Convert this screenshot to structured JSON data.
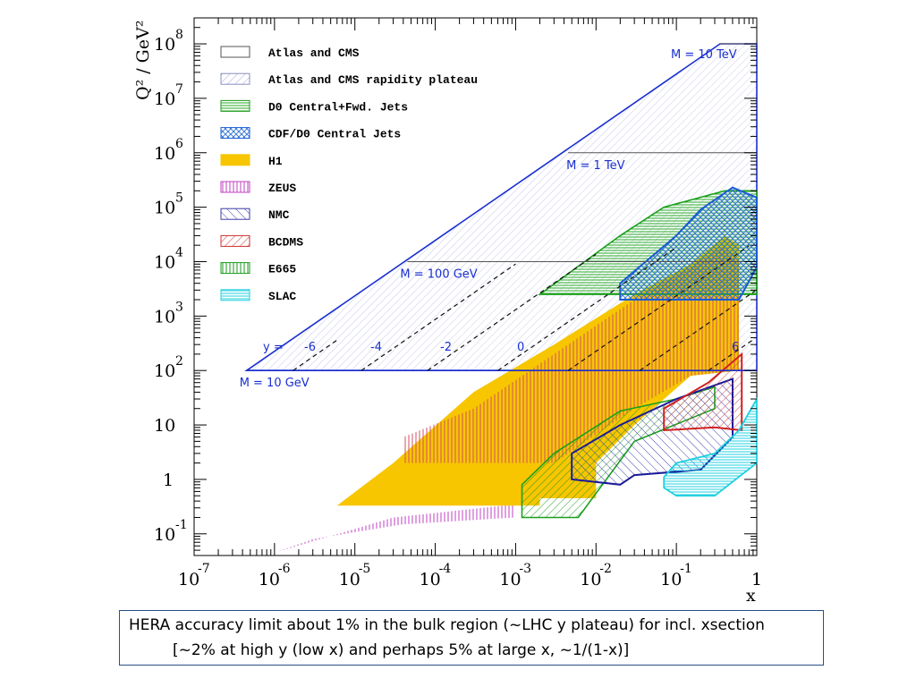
{
  "chart_data": {
    "type": "region-map",
    "axes": {
      "xlabel": "x",
      "ylabel": "Q² / GeV²",
      "xscale": "log",
      "yscale": "log",
      "xlim": [
        1e-07,
        1
      ],
      "ylim": [
        0.04,
        300000000.0
      ],
      "xticks": [
        {
          "base": "10",
          "exp": "-7",
          "value": 1e-07
        },
        {
          "base": "10",
          "exp": "-6",
          "value": 1e-06
        },
        {
          "base": "10",
          "exp": "-5",
          "value": 1e-05
        },
        {
          "base": "10",
          "exp": "-4",
          "value": 0.0001
        },
        {
          "base": "10",
          "exp": "-3",
          "value": 0.001
        },
        {
          "base": "10",
          "exp": "-2",
          "value": 0.01
        },
        {
          "base": "10",
          "exp": "-1",
          "value": 0.1
        },
        {
          "base": "1",
          "exp": "",
          "value": 1
        }
      ],
      "yticks": [
        {
          "base": "10",
          "exp": "8",
          "value": 100000000.0
        },
        {
          "base": "10",
          "exp": "7",
          "value": 10000000.0
        },
        {
          "base": "10",
          "exp": "6",
          "value": 1000000.0
        },
        {
          "base": "10",
          "exp": "5",
          "value": 100000.0
        },
        {
          "base": "10",
          "exp": "4",
          "value": 10000.0
        },
        {
          "base": "10",
          "exp": "3",
          "value": 1000.0
        },
        {
          "base": "10",
          "exp": "2",
          "value": 100.0
        },
        {
          "base": "10",
          "exp": "",
          "value": 10
        },
        {
          "base": "1",
          "exp": "",
          "value": 1
        },
        {
          "base": "10",
          "exp": "-1",
          "value": 0.1
        }
      ]
    },
    "legend": {
      "placement": "top-left",
      "entries": [
        {
          "label": "Atlas and CMS",
          "color": "#555555",
          "pattern": "none"
        },
        {
          "label": "Atlas and CMS rapidity plateau",
          "color": "#8a8fbf",
          "pattern": "diag-right"
        },
        {
          "label": "D0 Central+Fwd. Jets",
          "color": "#1a9a1a",
          "pattern": "horizontal"
        },
        {
          "label": "CDF/D0 Central Jets",
          "color": "#1a5bd6",
          "pattern": "cross"
        },
        {
          "label": "H1",
          "color": "#f7c600",
          "pattern": "solid"
        },
        {
          "label": "ZEUS",
          "color": "#c040c0",
          "pattern": "vertical"
        },
        {
          "label": "NMC",
          "color": "#3a3aa8",
          "pattern": "diag-left"
        },
        {
          "label": "BCDMS",
          "color": "#d03030",
          "pattern": "diag-right"
        },
        {
          "label": "E665",
          "color": "#1a9a1a",
          "pattern": "vertical"
        },
        {
          "label": "SLAC",
          "color": "#20d0e0",
          "pattern": "horizontal"
        }
      ]
    },
    "regions": [
      {
        "name": "Atlas and CMS",
        "color": "#1a2fd0",
        "points": [
          [
            4.5e-07,
            100
          ],
          [
            0.35,
            100000000.0
          ],
          [
            1,
            100000000.0
          ],
          [
            1,
            100
          ]
        ]
      },
      {
        "name": "ZEUS",
        "color": "#c040c0",
        "points": [
          [
            1e-06,
            0.045
          ],
          [
            3e-05,
            0.2
          ],
          [
            0.001,
            0.35
          ],
          [
            0.001,
            0.2
          ],
          [
            4e-05,
            0.15
          ],
          [
            3e-06,
            0.08
          ]
        ]
      },
      {
        "name": "H1",
        "color": "#f7c600",
        "points": [
          [
            6e-06,
            0.33
          ],
          [
            3e-05,
            2
          ],
          [
            0.0003,
            40
          ],
          [
            0.003,
            300
          ],
          [
            0.03,
            2500
          ],
          [
            0.15,
            9000
          ],
          [
            0.4,
            30000
          ],
          [
            0.6,
            20000
          ],
          [
            0.6,
            100
          ],
          [
            0.15,
            80
          ],
          [
            0.03,
            10
          ],
          [
            0.01,
            2
          ],
          [
            0.01,
            0.45
          ],
          [
            0.002,
            0.45
          ],
          [
            0.002,
            0.33
          ]
        ]
      },
      {
        "name": "H1 vertical hatch",
        "color": "#d04a6a",
        "points": [
          [
            4e-05,
            6
          ],
          [
            0.0003,
            20
          ],
          [
            0.003,
            200
          ],
          [
            0.03,
            2000
          ],
          [
            0.15,
            8000
          ],
          [
            0.4,
            20000
          ],
          [
            0.6,
            10000
          ],
          [
            0.6,
            100
          ],
          [
            0.15,
            80
          ],
          [
            0.03,
            20
          ],
          [
            0.003,
            2
          ],
          [
            4e-05,
            2
          ]
        ]
      },
      {
        "name": "D0 Central+Fwd. Jets",
        "color": "#1aa01a",
        "points": [
          [
            0.002,
            2500
          ],
          [
            0.02,
            30000
          ],
          [
            0.07,
            100000
          ],
          [
            0.4,
            200000
          ],
          [
            1,
            200000
          ],
          [
            1,
            2500
          ]
        ]
      },
      {
        "name": "CDF/D0 Central Jets",
        "color": "#1a5bd6",
        "points": [
          [
            0.02,
            2000
          ],
          [
            0.02,
            4000
          ],
          [
            0.1,
            30000
          ],
          [
            0.2,
            90000
          ],
          [
            0.5,
            230000
          ],
          [
            1,
            150000
          ],
          [
            1,
            8000
          ],
          [
            0.6,
            2000
          ]
        ]
      },
      {
        "name": "E665",
        "color": "#1aa01a",
        "points": [
          [
            0.0012,
            0.2
          ],
          [
            0.0012,
            0.8
          ],
          [
            0.003,
            3
          ],
          [
            0.02,
            18
          ],
          [
            0.1,
            30
          ],
          [
            0.3,
            50
          ],
          [
            0.3,
            20
          ],
          [
            0.03,
            5
          ],
          [
            0.006,
            0.2
          ]
        ]
      },
      {
        "name": "NMC",
        "color": "#1a1a9a",
        "points": [
          [
            0.005,
            1
          ],
          [
            0.005,
            3
          ],
          [
            0.02,
            10
          ],
          [
            0.1,
            30
          ],
          [
            0.5,
            70
          ],
          [
            0.5,
            6
          ],
          [
            0.2,
            1.5
          ],
          [
            0.03,
            1.2
          ],
          [
            0.02,
            0.8
          ]
        ]
      },
      {
        "name": "BCDMS",
        "color": "#d02020",
        "points": [
          [
            0.07,
            8
          ],
          [
            0.07,
            20
          ],
          [
            0.25,
            60
          ],
          [
            0.65,
            200
          ],
          [
            0.65,
            8
          ],
          [
            0.3,
            9
          ]
        ]
      },
      {
        "name": "SLAC",
        "color": "#20d0e0",
        "points": [
          [
            0.07,
            0.7
          ],
          [
            0.07,
            1.1
          ],
          [
            0.1,
            2
          ],
          [
            0.3,
            3
          ],
          [
            0.6,
            8
          ],
          [
            1,
            30
          ],
          [
            1,
            2
          ],
          [
            0.3,
            0.5
          ],
          [
            0.1,
            0.5
          ]
        ]
      }
    ],
    "mass_lines": [
      {
        "label": "M = 10 GeV",
        "q2": 100,
        "x_from": 4.5e-07
      },
      {
        "label": "M = 100 GeV",
        "q2": 10000,
        "x_from": 4.5e-05
      },
      {
        "label": "M = 1 TeV",
        "q2": 1000000,
        "x_from": 0.0045
      },
      {
        "label": "M = 10 TeV",
        "q2": 100000000,
        "x_from": 0.35
      }
    ],
    "rapidity_lines": [
      {
        "x_at_100": 1.7e-06,
        "x_top": 6e-06
      },
      {
        "x_at_100": 1.2e-05,
        "x_top": 0.001
      },
      {
        "x_at_100": 8e-05,
        "x_top": 0.01
      },
      {
        "x_at_100": 0.0006,
        "x_top": 0.1
      },
      {
        "x_at_100": 0.0045,
        "x_top": 0.8
      },
      {
        "x_at_100": 0.035,
        "x_top": 1
      },
      {
        "x_at_100": 0.25,
        "x_top": 1
      }
    ],
    "rapidity_labels": {
      "title": "y =",
      "values": [
        "-6",
        "-4",
        "-2",
        "0",
        "6"
      ]
    }
  },
  "caption": {
    "line1": "HERA accuracy limit about 1% in the bulk region (~LHC y plateau) for incl. xsection",
    "line2": "[~2% at high y (low x) and perhaps 5% at large x, ~1/(1-x)]"
  }
}
